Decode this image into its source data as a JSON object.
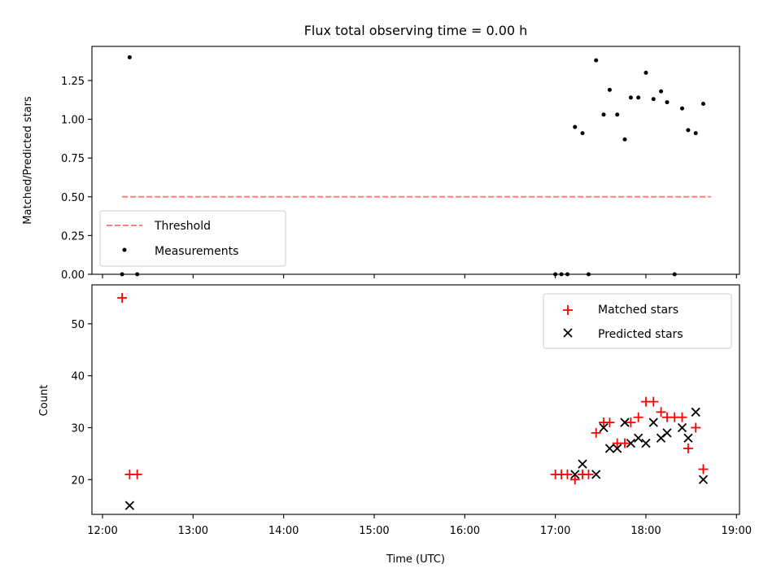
{
  "chart_data": [
    {
      "type": "line+scatter",
      "title": "Flux total observing time = 0.00 h",
      "ylabel": "Matched/Predicted stars",
      "ylim": [
        0.0,
        1.47
      ],
      "xlim": [
        "11:53",
        "19:02"
      ],
      "yticks": [
        0.0,
        0.25,
        0.5,
        0.75,
        1.0,
        1.25
      ],
      "ytick_labels": [
        "0.00",
        "0.25",
        "0.50",
        "0.75",
        "1.00",
        "1.25"
      ],
      "grid": false,
      "legend_position": "lower-left",
      "series": [
        {
          "name": "Threshold",
          "style": "dashed-line",
          "color": "#ff7f7f",
          "points": [
            {
              "x": "12:13",
              "y": 0.5
            },
            {
              "x": "18:43",
              "y": 0.5
            }
          ]
        },
        {
          "name": "Measurements",
          "style": "dot",
          "color": "#000000",
          "points": [
            {
              "x": "12:13",
              "y": 0.0
            },
            {
              "x": "12:18",
              "y": 1.4
            },
            {
              "x": "12:23",
              "y": 0.0
            },
            {
              "x": "17:00",
              "y": 0.0
            },
            {
              "x": "17:04",
              "y": 0.0
            },
            {
              "x": "17:08",
              "y": 0.0
            },
            {
              "x": "17:13",
              "y": 0.95
            },
            {
              "x": "17:18",
              "y": 0.91
            },
            {
              "x": "17:22",
              "y": 0.0
            },
            {
              "x": "17:27",
              "y": 1.38
            },
            {
              "x": "17:32",
              "y": 1.03
            },
            {
              "x": "17:36",
              "y": 1.19
            },
            {
              "x": "17:41",
              "y": 1.03
            },
            {
              "x": "17:46",
              "y": 0.87
            },
            {
              "x": "17:50",
              "y": 1.14
            },
            {
              "x": "17:55",
              "y": 1.14
            },
            {
              "x": "18:00",
              "y": 1.3
            },
            {
              "x": "18:05",
              "y": 1.13
            },
            {
              "x": "18:10",
              "y": 1.18
            },
            {
              "x": "18:14",
              "y": 1.11
            },
            {
              "x": "18:19",
              "y": 0.0
            },
            {
              "x": "18:24",
              "y": 1.07
            },
            {
              "x": "18:28",
              "y": 0.93
            },
            {
              "x": "18:33",
              "y": 0.91
            },
            {
              "x": "18:38",
              "y": 1.1
            }
          ]
        }
      ]
    },
    {
      "type": "scatter",
      "xlabel": "Time (UTC)",
      "ylabel": "Count",
      "ylim": [
        13.3,
        57.5
      ],
      "xlim": [
        "11:53",
        "19:02"
      ],
      "yticks": [
        20,
        30,
        40,
        50
      ],
      "ytick_labels": [
        "20",
        "30",
        "40",
        "50"
      ],
      "xticks": [
        "12:00",
        "13:00",
        "14:00",
        "15:00",
        "16:00",
        "17:00",
        "18:00",
        "19:00"
      ],
      "xtick_labels": [
        "12:00",
        "13:00",
        "14:00",
        "15:00",
        "16:00",
        "17:00",
        "18:00",
        "19:00"
      ],
      "grid": false,
      "legend_position": "upper-right",
      "series": [
        {
          "name": "Matched stars",
          "marker": "plus",
          "color": "#ff0000",
          "points": [
            {
              "x": "12:13",
              "y": 55
            },
            {
              "x": "12:18",
              "y": 21
            },
            {
              "x": "12:23",
              "y": 21
            },
            {
              "x": "17:00",
              "y": 21
            },
            {
              "x": "17:04",
              "y": 21
            },
            {
              "x": "17:08",
              "y": 21
            },
            {
              "x": "17:13",
              "y": 20
            },
            {
              "x": "17:18",
              "y": 21
            },
            {
              "x": "17:22",
              "y": 21
            },
            {
              "x": "17:27",
              "y": 29
            },
            {
              "x": "17:32",
              "y": 31
            },
            {
              "x": "17:36",
              "y": 31
            },
            {
              "x": "17:41",
              "y": 27
            },
            {
              "x": "17:46",
              "y": 27
            },
            {
              "x": "17:50",
              "y": 31
            },
            {
              "x": "17:55",
              "y": 32
            },
            {
              "x": "18:00",
              "y": 35
            },
            {
              "x": "18:05",
              "y": 35
            },
            {
              "x": "18:10",
              "y": 33
            },
            {
              "x": "18:14",
              "y": 32
            },
            {
              "x": "18:19",
              "y": 32
            },
            {
              "x": "18:24",
              "y": 32
            },
            {
              "x": "18:28",
              "y": 26
            },
            {
              "x": "18:33",
              "y": 30
            },
            {
              "x": "18:38",
              "y": 22
            }
          ]
        },
        {
          "name": "Predicted stars",
          "marker": "x",
          "color": "#000000",
          "points": [
            {
              "x": "12:18",
              "y": 15
            },
            {
              "x": "17:13",
              "y": 21
            },
            {
              "x": "17:18",
              "y": 23
            },
            {
              "x": "17:27",
              "y": 21
            },
            {
              "x": "17:32",
              "y": 30
            },
            {
              "x": "17:36",
              "y": 26
            },
            {
              "x": "17:41",
              "y": 26
            },
            {
              "x": "17:46",
              "y": 31
            },
            {
              "x": "17:50",
              "y": 27
            },
            {
              "x": "17:55",
              "y": 28
            },
            {
              "x": "18:00",
              "y": 27
            },
            {
              "x": "18:05",
              "y": 31
            },
            {
              "x": "18:10",
              "y": 28
            },
            {
              "x": "18:14",
              "y": 29
            },
            {
              "x": "18:24",
              "y": 30
            },
            {
              "x": "18:28",
              "y": 28
            },
            {
              "x": "18:33",
              "y": 33
            },
            {
              "x": "18:38",
              "y": 20
            }
          ]
        }
      ]
    }
  ]
}
